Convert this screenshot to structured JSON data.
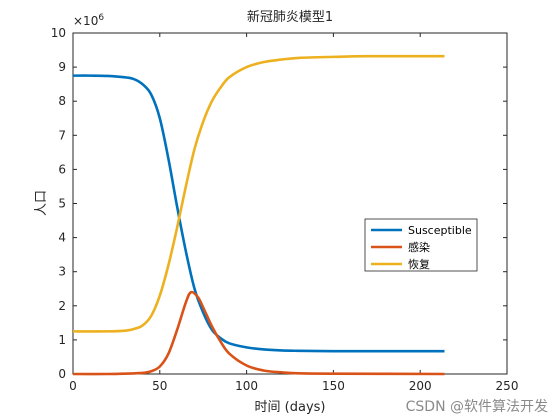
{
  "chart_data": {
    "type": "line",
    "title": "新冠肺炎模型1",
    "xlabel": "时间 (days)",
    "ylabel": "人口",
    "xlim": [
      0,
      250
    ],
    "ylim": [
      0,
      10
    ],
    "y_exponent_label": "×10",
    "y_exponent": "6",
    "xticks": [
      "0",
      "50",
      "100",
      "150",
      "200",
      "250"
    ],
    "yticks": [
      "0",
      "1",
      "2",
      "3",
      "4",
      "5",
      "6",
      "7",
      "8",
      "9",
      "10"
    ],
    "grid": false,
    "legend_position": "center-right",
    "series": [
      {
        "name": "Susceptible",
        "color": "#0072BD",
        "x": [
          0,
          10,
          20,
          30,
          35,
          40,
          45,
          50,
          55,
          60,
          65,
          70,
          75,
          80,
          85,
          90,
          100,
          110,
          120,
          130,
          150,
          170,
          190,
          214
        ],
        "y": [
          8.75,
          8.75,
          8.74,
          8.7,
          8.65,
          8.5,
          8.2,
          7.5,
          6.3,
          4.9,
          3.6,
          2.5,
          1.8,
          1.3,
          1.05,
          0.9,
          0.78,
          0.72,
          0.69,
          0.68,
          0.67,
          0.67,
          0.67,
          0.67
        ]
      },
      {
        "name": "感染",
        "color": "#D95319",
        "x": [
          0,
          20,
          30,
          40,
          45,
          50,
          55,
          60,
          65,
          68,
          72,
          75,
          80,
          85,
          90,
          100,
          110,
          120,
          130,
          150,
          214
        ],
        "y": [
          0,
          0,
          0.01,
          0.03,
          0.08,
          0.22,
          0.6,
          1.3,
          2.1,
          2.4,
          2.25,
          1.95,
          1.4,
          0.95,
          0.6,
          0.25,
          0.1,
          0.05,
          0.02,
          0.01,
          0
        ]
      },
      {
        "name": "恢复",
        "color": "#EDB120",
        "x": [
          0,
          20,
          30,
          35,
          40,
          45,
          50,
          55,
          60,
          65,
          70,
          75,
          80,
          85,
          90,
          100,
          110,
          120,
          130,
          150,
          170,
          214
        ],
        "y": [
          1.25,
          1.25,
          1.27,
          1.32,
          1.42,
          1.7,
          2.3,
          3.2,
          4.3,
          5.5,
          6.6,
          7.4,
          8.0,
          8.4,
          8.7,
          9.0,
          9.15,
          9.22,
          9.27,
          9.3,
          9.32,
          9.32
        ]
      }
    ]
  },
  "watermark": "CSDN @软件算法开发"
}
